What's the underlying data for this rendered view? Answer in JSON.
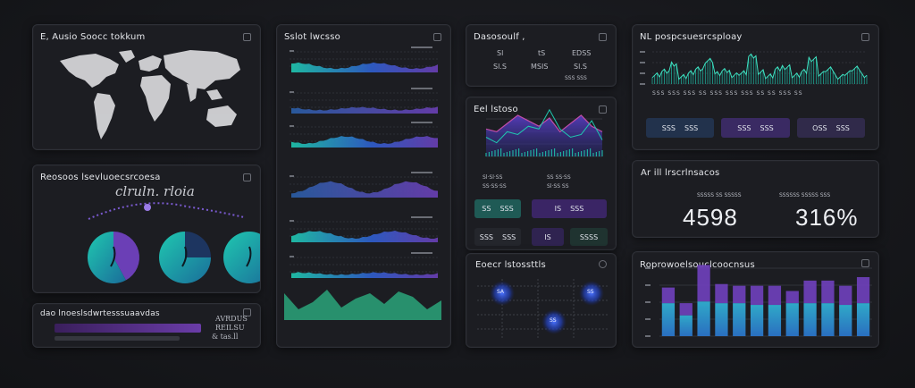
{
  "colors": {
    "teal": "#1fc8b0",
    "purple": "#6b3fb6",
    "blue": "#2f5fd0",
    "green": "#2aa57a"
  },
  "map_panel": {
    "title": "E, Ausio Soocc tokkum",
    "icon": "expand-icon"
  },
  "regions_panel": {
    "title": "Reosoos lsevluoecsrcoesa",
    "script": "clruln. rloia"
  },
  "bars_panel": {
    "title": "dao lnoeslsdwrtesssuaavdas",
    "label_top": "AVRDUS",
    "label_mid": "REILSU",
    "label_bottom": "& tas.ll"
  },
  "waves_panel": {
    "title": "Sslot lwcsso"
  },
  "dataset_panel": {
    "title": "Dasosoulf  ,",
    "rows": [
      {
        "a": "Sl",
        "b": "tS",
        "c": "EDSS"
      },
      {
        "a": "Sl.S",
        "b": "MSIS",
        "c": "Sl.S"
      }
    ],
    "footer": "SSS SSS"
  },
  "peaks_panel": {
    "title": "Eel lstoso",
    "stats": [
      {
        "label": "Sl·Sl·SS",
        "label2": "SS SS·SS"
      },
      {
        "label": "SS·SS·SS",
        "label2": "Sl·SS SS"
      }
    ],
    "buttons": [
      {
        "l": "SS",
        "r": "SSS"
      },
      {
        "l": "IS",
        "r": "SSS"
      },
      {
        "l": "SSS",
        "r": "SSS"
      },
      {
        "l": "IS",
        "r": "SSSS"
      }
    ]
  },
  "heat_panel": {
    "title": "Eoecr lstossttls",
    "nodes": [
      "SA",
      "SS",
      "SS"
    ]
  },
  "traffic_panel": {
    "title": "NL pospcsuesrcsploay",
    "xlabels": "SSS SSS SSS SS SSS SSS SSS SS SS SSS SS",
    "chips": [
      {
        "l": "SSS",
        "r": "SSS"
      },
      {
        "l": "SSS",
        "r": "SSS"
      },
      {
        "l": "OSS",
        "r": "SSS"
      }
    ]
  },
  "kpi_panel": {
    "title": "Ar ill lrscrlnsacos",
    "kpis": [
      {
        "caption": "SSSSS SS SSSSS",
        "value": "4598"
      },
      {
        "caption": "SSSSSS SSSSS SSS",
        "value": "316%"
      }
    ]
  },
  "stacked_panel": {
    "title": "Roprowoelsouclcoocnsus"
  },
  "chart_data": [
    {
      "type": "bar",
      "title": "Roprowoelsouclcoocnsus",
      "series": [
        {
          "name": "base",
          "values": [
            38,
            24,
            40,
            38,
            38,
            36,
            36,
            38,
            38,
            38,
            36,
            38
          ]
        },
        {
          "name": "top",
          "values": [
            18,
            14,
            42,
            22,
            20,
            22,
            22,
            14,
            26,
            26,
            22,
            30
          ]
        }
      ],
      "ylim": [
        0,
        90
      ]
    },
    {
      "type": "area",
      "title": "Eel lstoso",
      "series": [
        {
          "name": "teal",
          "values": [
            14,
            10,
            18,
            16,
            22,
            20,
            34,
            20,
            14,
            16,
            26,
            12
          ]
        },
        {
          "name": "purple",
          "values": [
            20,
            18,
            24,
            30,
            26,
            22,
            28,
            18,
            24,
            30,
            22,
            18
          ]
        }
      ],
      "ylim": [
        0,
        50
      ]
    },
    {
      "type": "line",
      "title": "NL pospcsuesrcsploay",
      "series": [
        {
          "name": "traffic",
          "values": [
            8,
            12,
            20,
            6,
            10,
            14,
            26,
            9,
            12,
            8,
            10,
            30,
            12,
            6,
            14,
            18,
            7,
            11,
            28,
            9,
            14,
            6,
            10,
            15,
            8
          ]
        }
      ],
      "ylim": [
        0,
        40
      ]
    },
    {
      "type": "pie",
      "title": "Reosoos lsevluoecsrcoesa",
      "series": [
        {
          "name": "donut-a",
          "values": [
            42,
            58
          ]
        },
        {
          "name": "donut-b",
          "values": [
            25,
            75
          ]
        },
        {
          "name": "donut-c",
          "values": [
            100
          ]
        }
      ]
    }
  ]
}
